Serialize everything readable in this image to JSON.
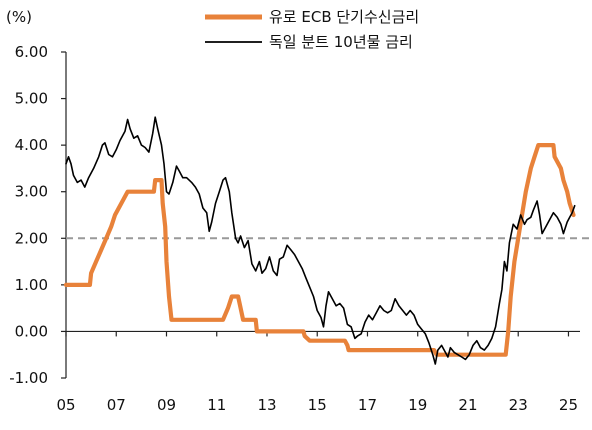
{
  "chart_data": {
    "type": "line",
    "unit_label": "(%)",
    "ylim": [
      -1.0,
      6.0
    ],
    "xlim": [
      2005,
      2025.3
    ],
    "y_ticks": [
      "6.00",
      "5.00",
      "4.00",
      "3.00",
      "2.00",
      "1.00",
      "0.00",
      "-1.00"
    ],
    "y_tick_values": [
      6,
      5,
      4,
      3,
      2,
      1,
      0,
      -1
    ],
    "x_ticks": [
      "05",
      "07",
      "09",
      "11",
      "13",
      "15",
      "17",
      "19",
      "21",
      "23",
      "25"
    ],
    "x_tick_values": [
      2005,
      2007,
      2009,
      2011,
      2013,
      2015,
      2017,
      2019,
      2021,
      2023,
      2025
    ],
    "reference_line": {
      "y": 2.0,
      "style": "dashed",
      "color": "#999999"
    },
    "grid": false,
    "legend_position": "top-center",
    "series": [
      {
        "name": "유로 ECB 단기수신금리",
        "color": "#E8823A",
        "style": "thick",
        "points": [
          [
            2005.0,
            1.0
          ],
          [
            2005.95,
            1.0
          ],
          [
            2006.0,
            1.25
          ],
          [
            2006.2,
            1.5
          ],
          [
            2006.4,
            1.75
          ],
          [
            2006.6,
            2.0
          ],
          [
            2006.8,
            2.25
          ],
          [
            2006.95,
            2.5
          ],
          [
            2007.2,
            2.75
          ],
          [
            2007.45,
            3.0
          ],
          [
            2008.5,
            3.0
          ],
          [
            2008.55,
            3.25
          ],
          [
            2008.8,
            3.25
          ],
          [
            2008.85,
            2.75
          ],
          [
            2008.95,
            2.25
          ],
          [
            2009.0,
            1.5
          ],
          [
            2009.1,
            0.75
          ],
          [
            2009.2,
            0.25
          ],
          [
            2011.25,
            0.25
          ],
          [
            2011.45,
            0.5
          ],
          [
            2011.6,
            0.75
          ],
          [
            2011.85,
            0.75
          ],
          [
            2011.95,
            0.5
          ],
          [
            2012.05,
            0.25
          ],
          [
            2012.55,
            0.25
          ],
          [
            2012.6,
            0.0
          ],
          [
            2014.45,
            0.0
          ],
          [
            2014.5,
            -0.1
          ],
          [
            2014.7,
            -0.2
          ],
          [
            2016.1,
            -0.2
          ],
          [
            2016.2,
            -0.3
          ],
          [
            2016.25,
            -0.4
          ],
          [
            2019.65,
            -0.4
          ],
          [
            2019.75,
            -0.5
          ],
          [
            2022.5,
            -0.5
          ],
          [
            2022.6,
            0.0
          ],
          [
            2022.7,
            0.75
          ],
          [
            2022.85,
            1.5
          ],
          [
            2023.0,
            2.0
          ],
          [
            2023.15,
            2.5
          ],
          [
            2023.3,
            3.0
          ],
          [
            2023.4,
            3.25
          ],
          [
            2023.5,
            3.5
          ],
          [
            2023.65,
            3.75
          ],
          [
            2023.8,
            4.0
          ],
          [
            2024.4,
            4.0
          ],
          [
            2024.45,
            3.75
          ],
          [
            2024.7,
            3.5
          ],
          [
            2024.8,
            3.25
          ],
          [
            2024.95,
            3.0
          ],
          [
            2025.05,
            2.75
          ],
          [
            2025.2,
            2.5
          ]
        ]
      },
      {
        "name": "독일 분트 10년물 금리",
        "color": "#000000",
        "style": "thin",
        "points": [
          [
            2005.0,
            3.6
          ],
          [
            2005.1,
            3.75
          ],
          [
            2005.2,
            3.6
          ],
          [
            2005.3,
            3.35
          ],
          [
            2005.45,
            3.2
          ],
          [
            2005.6,
            3.25
          ],
          [
            2005.75,
            3.1
          ],
          [
            2005.9,
            3.3
          ],
          [
            2006.1,
            3.5
          ],
          [
            2006.3,
            3.75
          ],
          [
            2006.45,
            4.0
          ],
          [
            2006.55,
            4.05
          ],
          [
            2006.7,
            3.8
          ],
          [
            2006.85,
            3.75
          ],
          [
            2007.0,
            3.9
          ],
          [
            2007.15,
            4.1
          ],
          [
            2007.35,
            4.3
          ],
          [
            2007.45,
            4.55
          ],
          [
            2007.55,
            4.35
          ],
          [
            2007.7,
            4.15
          ],
          [
            2007.85,
            4.2
          ],
          [
            2008.0,
            4.0
          ],
          [
            2008.15,
            3.95
          ],
          [
            2008.3,
            3.85
          ],
          [
            2008.45,
            4.25
          ],
          [
            2008.55,
            4.6
          ],
          [
            2008.65,
            4.35
          ],
          [
            2008.8,
            4.0
          ],
          [
            2008.9,
            3.6
          ],
          [
            2009.0,
            3.0
          ],
          [
            2009.1,
            2.95
          ],
          [
            2009.25,
            3.2
          ],
          [
            2009.4,
            3.55
          ],
          [
            2009.5,
            3.45
          ],
          [
            2009.65,
            3.3
          ],
          [
            2009.8,
            3.3
          ],
          [
            2010.0,
            3.2
          ],
          [
            2010.15,
            3.1
          ],
          [
            2010.3,
            2.95
          ],
          [
            2010.45,
            2.65
          ],
          [
            2010.6,
            2.55
          ],
          [
            2010.7,
            2.15
          ],
          [
            2010.8,
            2.35
          ],
          [
            2010.95,
            2.75
          ],
          [
            2011.1,
            3.0
          ],
          [
            2011.25,
            3.25
          ],
          [
            2011.35,
            3.3
          ],
          [
            2011.5,
            3.0
          ],
          [
            2011.6,
            2.55
          ],
          [
            2011.75,
            2.0
          ],
          [
            2011.85,
            1.9
          ],
          [
            2011.95,
            2.05
          ],
          [
            2012.1,
            1.8
          ],
          [
            2012.25,
            1.95
          ],
          [
            2012.4,
            1.45
          ],
          [
            2012.55,
            1.3
          ],
          [
            2012.7,
            1.5
          ],
          [
            2012.8,
            1.25
          ],
          [
            2012.95,
            1.35
          ],
          [
            2013.1,
            1.6
          ],
          [
            2013.25,
            1.3
          ],
          [
            2013.4,
            1.2
          ],
          [
            2013.5,
            1.55
          ],
          [
            2013.65,
            1.6
          ],
          [
            2013.8,
            1.85
          ],
          [
            2013.95,
            1.75
          ],
          [
            2014.1,
            1.65
          ],
          [
            2014.25,
            1.5
          ],
          [
            2014.4,
            1.35
          ],
          [
            2014.55,
            1.15
          ],
          [
            2014.7,
            0.95
          ],
          [
            2014.85,
            0.75
          ],
          [
            2015.0,
            0.45
          ],
          [
            2015.15,
            0.3
          ],
          [
            2015.25,
            0.1
          ],
          [
            2015.35,
            0.55
          ],
          [
            2015.45,
            0.85
          ],
          [
            2015.6,
            0.7
          ],
          [
            2015.75,
            0.55
          ],
          [
            2015.9,
            0.6
          ],
          [
            2016.05,
            0.5
          ],
          [
            2016.2,
            0.15
          ],
          [
            2016.35,
            0.1
          ],
          [
            2016.5,
            -0.15
          ],
          [
            2016.6,
            -0.1
          ],
          [
            2016.75,
            -0.05
          ],
          [
            2016.9,
            0.2
          ],
          [
            2017.05,
            0.35
          ],
          [
            2017.2,
            0.25
          ],
          [
            2017.35,
            0.4
          ],
          [
            2017.5,
            0.55
          ],
          [
            2017.65,
            0.45
          ],
          [
            2017.8,
            0.4
          ],
          [
            2017.95,
            0.45
          ],
          [
            2018.1,
            0.7
          ],
          [
            2018.25,
            0.55
          ],
          [
            2018.4,
            0.45
          ],
          [
            2018.55,
            0.35
          ],
          [
            2018.7,
            0.45
          ],
          [
            2018.85,
            0.35
          ],
          [
            2019.0,
            0.15
          ],
          [
            2019.15,
            0.05
          ],
          [
            2019.3,
            -0.05
          ],
          [
            2019.45,
            -0.25
          ],
          [
            2019.6,
            -0.5
          ],
          [
            2019.7,
            -0.7
          ],
          [
            2019.8,
            -0.4
          ],
          [
            2019.95,
            -0.3
          ],
          [
            2020.1,
            -0.45
          ],
          [
            2020.2,
            -0.55
          ],
          [
            2020.3,
            -0.35
          ],
          [
            2020.45,
            -0.45
          ],
          [
            2020.6,
            -0.5
          ],
          [
            2020.75,
            -0.55
          ],
          [
            2020.9,
            -0.6
          ],
          [
            2021.05,
            -0.5
          ],
          [
            2021.2,
            -0.3
          ],
          [
            2021.35,
            -0.2
          ],
          [
            2021.5,
            -0.35
          ],
          [
            2021.65,
            -0.4
          ],
          [
            2021.8,
            -0.3
          ],
          [
            2021.95,
            -0.15
          ],
          [
            2022.1,
            0.1
          ],
          [
            2022.25,
            0.6
          ],
          [
            2022.35,
            0.9
          ],
          [
            2022.45,
            1.5
          ],
          [
            2022.55,
            1.3
          ],
          [
            2022.65,
            1.9
          ],
          [
            2022.8,
            2.3
          ],
          [
            2022.95,
            2.2
          ],
          [
            2023.1,
            2.5
          ],
          [
            2023.25,
            2.3
          ],
          [
            2023.35,
            2.4
          ],
          [
            2023.5,
            2.45
          ],
          [
            2023.6,
            2.6
          ],
          [
            2023.75,
            2.8
          ],
          [
            2023.85,
            2.5
          ],
          [
            2023.95,
            2.1
          ],
          [
            2024.1,
            2.25
          ],
          [
            2024.25,
            2.4
          ],
          [
            2024.4,
            2.55
          ],
          [
            2024.55,
            2.45
          ],
          [
            2024.7,
            2.3
          ],
          [
            2024.8,
            2.1
          ],
          [
            2024.95,
            2.35
          ],
          [
            2025.05,
            2.45
          ],
          [
            2025.15,
            2.55
          ],
          [
            2025.25,
            2.7
          ]
        ]
      }
    ]
  }
}
